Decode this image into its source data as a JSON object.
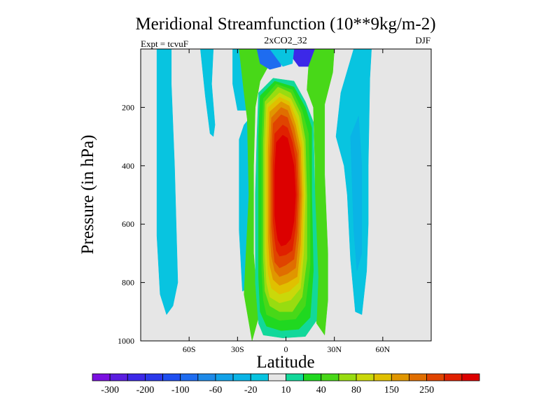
{
  "chart_data": {
    "type": "heatmap",
    "title": "Meridional Streamfunction (10**9kg/m-2)",
    "subtitle_center": "2xCO2_32",
    "subtitle_left": "Expt = tcvuF",
    "subtitle_right": "DJF",
    "xlabel": "Latitude",
    "ylabel": "Pressure (in hPa)",
    "xlim": [
      -90,
      90
    ],
    "ylim": [
      1000,
      0
    ],
    "x_ticks": [
      -60,
      -30,
      0,
      30,
      60
    ],
    "x_tick_labels": [
      "60S",
      "30S",
      "0",
      "30N",
      "60N"
    ],
    "y_ticks": [
      200,
      400,
      600,
      800,
      1000
    ],
    "y_tick_labels": [
      "200",
      "400",
      "600",
      "800",
      "1000"
    ],
    "background_color": "#e6e6e6",
    "colorbar": {
      "levels": [
        -300,
        -250,
        -200,
        -150,
        -100,
        -80,
        -60,
        -40,
        -20,
        -10,
        10,
        20,
        40,
        60,
        80,
        100,
        150,
        200,
        250,
        300
      ],
      "tick_labels": [
        "-300",
        "-200",
        "-100",
        "-60",
        "-20",
        "10",
        "40",
        "80",
        "150",
        "250"
      ],
      "colors": [
        "#7a10e0",
        "#5a1ee0",
        "#3c28e8",
        "#2a38ea",
        "#1e4ef0",
        "#1e6cf0",
        "#1e8ae8",
        "#12a2e8",
        "#0ab4e6",
        "#08c4e0",
        "#e6e6e6",
        "#12d89a",
        "#20d820",
        "#48d818",
        "#98dc10",
        "#cad80a",
        "#e0c000",
        "#e09600",
        "#e06e00",
        "#e04400",
        "#e02000",
        "#dc0000"
      ]
    },
    "contours": [
      {
        "label": "western-negative-band",
        "color": "#08c4e0",
        "points": [
          [
            -80,
            0
          ],
          [
            -71,
            0
          ],
          [
            -71,
            120
          ],
          [
            -69,
            400
          ],
          [
            -67,
            800
          ],
          [
            -70,
            880
          ],
          [
            -74,
            910
          ],
          [
            -78,
            840
          ],
          [
            -80,
            640
          ]
        ]
      },
      {
        "label": "southern-subtropical-band",
        "color": "#08c4e0",
        "points": [
          [
            -53,
            0
          ],
          [
            -45,
            0
          ],
          [
            -46,
            120
          ],
          [
            -44,
            260
          ],
          [
            -45,
            300
          ],
          [
            -47,
            290
          ],
          [
            -50,
            160
          ]
        ]
      },
      {
        "label": "southern-cyan-sliver",
        "color": "#08c4e0",
        "points": [
          [
            -29,
            310
          ],
          [
            -26,
            260
          ],
          [
            -23,
            240
          ],
          [
            -23,
            500
          ],
          [
            -24,
            820
          ],
          [
            -27,
            830
          ],
          [
            -29,
            620
          ]
        ]
      },
      {
        "label": "upper-southern-cyan",
        "color": "#08c4e0",
        "points": [
          [
            -33,
            0
          ],
          [
            -29,
            0
          ],
          [
            -26,
            150
          ],
          [
            -20,
            210
          ],
          [
            -30,
            210
          ],
          [
            -33,
            120
          ]
        ]
      },
      {
        "label": "south-green-margin",
        "color": "#48d818",
        "points": [
          [
            -29,
            0
          ],
          [
            -10,
            0
          ],
          [
            -11,
            60
          ],
          [
            -16,
            110
          ],
          [
            -19,
            200
          ],
          [
            -20,
            400
          ],
          [
            -20,
            700
          ],
          [
            -17,
            920
          ],
          [
            -21,
            1000
          ],
          [
            -26,
            840
          ],
          [
            -23,
            500
          ],
          [
            -24,
            240
          ],
          [
            -26,
            150
          ]
        ]
      },
      {
        "label": "upper-negative-blue-left",
        "color": "#1e6cf0",
        "points": [
          [
            -18,
            0
          ],
          [
            -4,
            0
          ],
          [
            -3,
            60
          ],
          [
            -10,
            70
          ],
          [
            -16,
            50
          ]
        ]
      },
      {
        "label": "upper-negative-blue-right",
        "color": "#3c28e8",
        "points": [
          [
            5,
            0
          ],
          [
            18,
            0
          ],
          [
            14,
            60
          ],
          [
            8,
            60
          ],
          [
            4,
            30
          ]
        ]
      },
      {
        "label": "upper-cyan-between",
        "color": "#08c4e0",
        "points": [
          [
            -10,
            0
          ],
          [
            5,
            0
          ],
          [
            4,
            50
          ],
          [
            -2,
            60
          ]
        ]
      },
      {
        "label": "northern-green-margin",
        "color": "#48d818",
        "points": [
          [
            18,
            0
          ],
          [
            30,
            0
          ],
          [
            29,
            80
          ],
          [
            24,
            190
          ],
          [
            24,
            430
          ],
          [
            26,
            700
          ],
          [
            26,
            860
          ],
          [
            24,
            980
          ],
          [
            19,
            940
          ],
          [
            18,
            700
          ],
          [
            18,
            400
          ],
          [
            17,
            200
          ],
          [
            13,
            140
          ],
          [
            14,
            60
          ]
        ]
      },
      {
        "label": "northern-cyan-band",
        "color": "#08c4e0",
        "points": [
          [
            42,
            0
          ],
          [
            53,
            0
          ],
          [
            52,
            100
          ],
          [
            51,
            400
          ],
          [
            51,
            600
          ],
          [
            50,
            760
          ],
          [
            47,
            910
          ],
          [
            43,
            900
          ],
          [
            40,
            720
          ],
          [
            38,
            500
          ],
          [
            36,
            400
          ],
          [
            31,
            300
          ],
          [
            34,
            150
          ]
        ]
      },
      {
        "label": "northern-blue-core",
        "color": "#0ab4e6",
        "points": [
          [
            40,
            300
          ],
          [
            45,
            230
          ],
          [
            47,
            400
          ],
          [
            47,
            700
          ],
          [
            44,
            760
          ],
          [
            42,
            620
          ]
        ]
      },
      {
        "label": "hadley-cell-10",
        "color": "#12d89a",
        "points": [
          [
            -17,
            150
          ],
          [
            -8,
            100
          ],
          [
            5,
            110
          ],
          [
            12,
            180
          ],
          [
            17,
            250
          ],
          [
            18,
            500
          ],
          [
            20,
            780
          ],
          [
            19,
            930
          ],
          [
            12,
            985
          ],
          [
            -2,
            990
          ],
          [
            -14,
            980
          ],
          [
            -17,
            940
          ],
          [
            -19,
            800
          ],
          [
            -19,
            500
          ],
          [
            -18,
            300
          ]
        ]
      },
      {
        "label": "hadley-cell-20",
        "color": "#20d820",
        "points": [
          [
            -16,
            160
          ],
          [
            -7,
            110
          ],
          [
            5,
            130
          ],
          [
            12,
            200
          ],
          [
            16,
            270
          ],
          [
            16,
            500
          ],
          [
            17,
            760
          ],
          [
            15,
            920
          ],
          [
            8,
            960
          ],
          [
            -3,
            965
          ],
          [
            -12,
            950
          ],
          [
            -16,
            900
          ],
          [
            -17,
            780
          ],
          [
            -17,
            500
          ],
          [
            -17,
            300
          ]
        ]
      },
      {
        "label": "hadley-cell-40",
        "color": "#48d818",
        "points": [
          [
            -14,
            170
          ],
          [
            -6,
            120
          ],
          [
            4,
            140
          ],
          [
            10,
            210
          ],
          [
            14,
            290
          ],
          [
            15,
            500
          ],
          [
            15,
            740
          ],
          [
            12,
            880
          ],
          [
            6,
            925
          ],
          [
            -4,
            930
          ],
          [
            -12,
            910
          ],
          [
            -14,
            860
          ],
          [
            -15,
            760
          ],
          [
            -15,
            500
          ],
          [
            -15,
            300
          ]
        ]
      },
      {
        "label": "hadley-cell-60",
        "color": "#98dc10",
        "points": [
          [
            -13,
            180
          ],
          [
            -5,
            130
          ],
          [
            3,
            150
          ],
          [
            9,
            220
          ],
          [
            12,
            310
          ],
          [
            13,
            500
          ],
          [
            13,
            720
          ],
          [
            10,
            850
          ],
          [
            4,
            900
          ],
          [
            -4,
            900
          ],
          [
            -10,
            880
          ],
          [
            -13,
            830
          ],
          [
            -14,
            720
          ],
          [
            -14,
            500
          ],
          [
            -14,
            320
          ]
        ]
      },
      {
        "label": "hadley-cell-80",
        "color": "#cad80a",
        "points": [
          [
            -12,
            190
          ],
          [
            -4,
            150
          ],
          [
            3,
            170
          ],
          [
            8,
            230
          ],
          [
            11,
            320
          ],
          [
            12,
            500
          ],
          [
            11,
            700
          ],
          [
            9,
            820
          ],
          [
            3,
            860
          ],
          [
            -4,
            870
          ],
          [
            -10,
            850
          ],
          [
            -12,
            800
          ],
          [
            -13,
            700
          ],
          [
            -13,
            500
          ],
          [
            -13,
            330
          ]
        ]
      },
      {
        "label": "hadley-cell-100",
        "color": "#e0c000",
        "points": [
          [
            -11,
            200
          ],
          [
            -4,
            165
          ],
          [
            2,
            180
          ],
          [
            7,
            245
          ],
          [
            10,
            330
          ],
          [
            11,
            500
          ],
          [
            10,
            690
          ],
          [
            8,
            800
          ],
          [
            2,
            830
          ],
          [
            -4,
            840
          ],
          [
            -9,
            820
          ],
          [
            -11,
            770
          ],
          [
            -12,
            680
          ],
          [
            -12,
            500
          ],
          [
            -12,
            340
          ]
        ]
      },
      {
        "label": "hadley-cell-150",
        "color": "#e09600",
        "points": [
          [
            -10,
            215
          ],
          [
            -3,
            180
          ],
          [
            2,
            195
          ],
          [
            6,
            260
          ],
          [
            9,
            340
          ],
          [
            10,
            500
          ],
          [
            9,
            670
          ],
          [
            7,
            780
          ],
          [
            1,
            800
          ],
          [
            -4,
            810
          ],
          [
            -8,
            790
          ],
          [
            -10,
            740
          ],
          [
            -11,
            650
          ],
          [
            -11,
            500
          ],
          [
            -11,
            350
          ]
        ]
      },
      {
        "label": "hadley-cell-200",
        "color": "#e06e00",
        "points": [
          [
            -9,
            235
          ],
          [
            -3,
            200
          ],
          [
            1,
            210
          ],
          [
            5,
            270
          ],
          [
            8,
            350
          ],
          [
            9,
            500
          ],
          [
            8,
            650
          ],
          [
            6,
            750
          ],
          [
            1,
            770
          ],
          [
            -4,
            780
          ],
          [
            -7,
            760
          ],
          [
            -9,
            710
          ],
          [
            -10,
            630
          ],
          [
            -10,
            500
          ],
          [
            -10,
            370
          ]
        ]
      },
      {
        "label": "hadley-cell-250",
        "color": "#e04400",
        "points": [
          [
            -8,
            255
          ],
          [
            -3,
            225
          ],
          [
            1,
            235
          ],
          [
            4,
            290
          ],
          [
            7,
            360
          ],
          [
            8,
            500
          ],
          [
            7,
            630
          ],
          [
            5,
            720
          ],
          [
            0,
            740
          ],
          [
            -4,
            750
          ],
          [
            -7,
            730
          ],
          [
            -8,
            680
          ],
          [
            -9,
            610
          ],
          [
            -9,
            500
          ],
          [
            -9,
            380
          ]
        ]
      },
      {
        "label": "hadley-cell-300",
        "color": "#e02000",
        "points": [
          [
            -7,
            290
          ],
          [
            -2,
            260
          ],
          [
            1,
            270
          ],
          [
            4,
            320
          ],
          [
            6,
            380
          ],
          [
            7,
            500
          ],
          [
            6,
            610
          ],
          [
            4,
            690
          ],
          [
            0,
            705
          ],
          [
            -4,
            710
          ],
          [
            -6,
            690
          ],
          [
            -7,
            650
          ],
          [
            -8,
            590
          ],
          [
            -8,
            500
          ],
          [
            -8,
            400
          ]
        ]
      },
      {
        "label": "hadley-cell-core",
        "color": "#dc0000",
        "points": [
          [
            -6,
            320
          ],
          [
            -2,
            295
          ],
          [
            1,
            305
          ],
          [
            3,
            350
          ],
          [
            5,
            400
          ],
          [
            6,
            500
          ],
          [
            5,
            590
          ],
          [
            3,
            650
          ],
          [
            0,
            670
          ],
          [
            -3,
            675
          ],
          [
            -5,
            655
          ],
          [
            -6,
            620
          ],
          [
            -7,
            570
          ],
          [
            -7,
            500
          ],
          [
            -7,
            420
          ]
        ]
      }
    ]
  }
}
